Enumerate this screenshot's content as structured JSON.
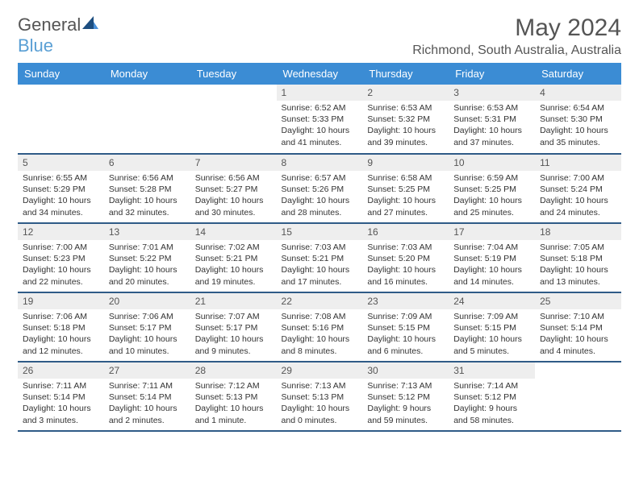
{
  "brand": {
    "text1": "General",
    "text2": "Blue"
  },
  "header": {
    "month_title": "May 2024",
    "location": "Richmond, South Australia, Australia"
  },
  "colors": {
    "header_bg": "#3b8cd4",
    "header_text": "#ffffff",
    "row_divider": "#2f5b87",
    "daynum_bg": "#eeeeee",
    "text": "#333333",
    "brand_gray": "#555555",
    "brand_blue": "#5a9fd4",
    "sail_dark": "#1d4e80",
    "sail_light": "#4a90d9"
  },
  "days_of_week": [
    "Sunday",
    "Monday",
    "Tuesday",
    "Wednesday",
    "Thursday",
    "Friday",
    "Saturday"
  ],
  "weeks": [
    [
      null,
      null,
      null,
      {
        "n": "1",
        "sr": "6:52 AM",
        "ss": "5:33 PM",
        "dl": "10 hours and 41 minutes."
      },
      {
        "n": "2",
        "sr": "6:53 AM",
        "ss": "5:32 PM",
        "dl": "10 hours and 39 minutes."
      },
      {
        "n": "3",
        "sr": "6:53 AM",
        "ss": "5:31 PM",
        "dl": "10 hours and 37 minutes."
      },
      {
        "n": "4",
        "sr": "6:54 AM",
        "ss": "5:30 PM",
        "dl": "10 hours and 35 minutes."
      }
    ],
    [
      {
        "n": "5",
        "sr": "6:55 AM",
        "ss": "5:29 PM",
        "dl": "10 hours and 34 minutes."
      },
      {
        "n": "6",
        "sr": "6:56 AM",
        "ss": "5:28 PM",
        "dl": "10 hours and 32 minutes."
      },
      {
        "n": "7",
        "sr": "6:56 AM",
        "ss": "5:27 PM",
        "dl": "10 hours and 30 minutes."
      },
      {
        "n": "8",
        "sr": "6:57 AM",
        "ss": "5:26 PM",
        "dl": "10 hours and 28 minutes."
      },
      {
        "n": "9",
        "sr": "6:58 AM",
        "ss": "5:25 PM",
        "dl": "10 hours and 27 minutes."
      },
      {
        "n": "10",
        "sr": "6:59 AM",
        "ss": "5:25 PM",
        "dl": "10 hours and 25 minutes."
      },
      {
        "n": "11",
        "sr": "7:00 AM",
        "ss": "5:24 PM",
        "dl": "10 hours and 24 minutes."
      }
    ],
    [
      {
        "n": "12",
        "sr": "7:00 AM",
        "ss": "5:23 PM",
        "dl": "10 hours and 22 minutes."
      },
      {
        "n": "13",
        "sr": "7:01 AM",
        "ss": "5:22 PM",
        "dl": "10 hours and 20 minutes."
      },
      {
        "n": "14",
        "sr": "7:02 AM",
        "ss": "5:21 PM",
        "dl": "10 hours and 19 minutes."
      },
      {
        "n": "15",
        "sr": "7:03 AM",
        "ss": "5:21 PM",
        "dl": "10 hours and 17 minutes."
      },
      {
        "n": "16",
        "sr": "7:03 AM",
        "ss": "5:20 PM",
        "dl": "10 hours and 16 minutes."
      },
      {
        "n": "17",
        "sr": "7:04 AM",
        "ss": "5:19 PM",
        "dl": "10 hours and 14 minutes."
      },
      {
        "n": "18",
        "sr": "7:05 AM",
        "ss": "5:18 PM",
        "dl": "10 hours and 13 minutes."
      }
    ],
    [
      {
        "n": "19",
        "sr": "7:06 AM",
        "ss": "5:18 PM",
        "dl": "10 hours and 12 minutes."
      },
      {
        "n": "20",
        "sr": "7:06 AM",
        "ss": "5:17 PM",
        "dl": "10 hours and 10 minutes."
      },
      {
        "n": "21",
        "sr": "7:07 AM",
        "ss": "5:17 PM",
        "dl": "10 hours and 9 minutes."
      },
      {
        "n": "22",
        "sr": "7:08 AM",
        "ss": "5:16 PM",
        "dl": "10 hours and 8 minutes."
      },
      {
        "n": "23",
        "sr": "7:09 AM",
        "ss": "5:15 PM",
        "dl": "10 hours and 6 minutes."
      },
      {
        "n": "24",
        "sr": "7:09 AM",
        "ss": "5:15 PM",
        "dl": "10 hours and 5 minutes."
      },
      {
        "n": "25",
        "sr": "7:10 AM",
        "ss": "5:14 PM",
        "dl": "10 hours and 4 minutes."
      }
    ],
    [
      {
        "n": "26",
        "sr": "7:11 AM",
        "ss": "5:14 PM",
        "dl": "10 hours and 3 minutes."
      },
      {
        "n": "27",
        "sr": "7:11 AM",
        "ss": "5:14 PM",
        "dl": "10 hours and 2 minutes."
      },
      {
        "n": "28",
        "sr": "7:12 AM",
        "ss": "5:13 PM",
        "dl": "10 hours and 1 minute."
      },
      {
        "n": "29",
        "sr": "7:13 AM",
        "ss": "5:13 PM",
        "dl": "10 hours and 0 minutes."
      },
      {
        "n": "30",
        "sr": "7:13 AM",
        "ss": "5:12 PM",
        "dl": "9 hours and 59 minutes."
      },
      {
        "n": "31",
        "sr": "7:14 AM",
        "ss": "5:12 PM",
        "dl": "9 hours and 58 minutes."
      },
      null
    ]
  ],
  "labels": {
    "sunrise": "Sunrise: ",
    "sunset": "Sunset: ",
    "daylight": "Daylight: "
  }
}
